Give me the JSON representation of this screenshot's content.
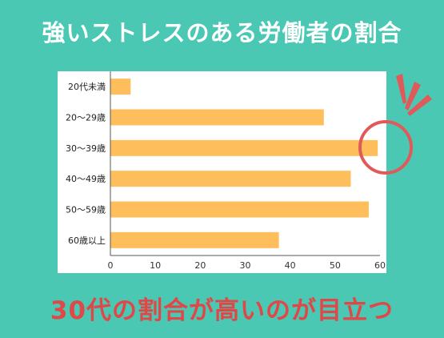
{
  "colors": {
    "background": "#4ac8b4",
    "panel": "#ffffff",
    "bar": "#ffbe5c",
    "accent": "#e05a5a",
    "title_text": "#ffffff",
    "caption_text": "#e04848",
    "axis": "#555555"
  },
  "header": {
    "title": "強いストレスのある労働者の割合"
  },
  "footer": {
    "caption": "30代の割合が高いのが目立つ"
  },
  "annotation": {
    "highlight_category": "30～39歳",
    "marker": "circle-with-burst-lines"
  },
  "chart_data": {
    "type": "bar",
    "orientation": "horizontal",
    "title": "",
    "xlabel": "",
    "ylabel": "",
    "categories": [
      "20代未満",
      "20～29歳",
      "30～39歳",
      "40～49歳",
      "50～59歳",
      "60歳以上"
    ],
    "values": [
      4.5,
      47.5,
      59.5,
      53.5,
      57.5,
      37.5
    ],
    "xlim": [
      0,
      60
    ],
    "xticks": [
      0,
      10,
      20,
      30,
      40,
      50,
      60
    ],
    "grid": false,
    "legend": "none"
  }
}
